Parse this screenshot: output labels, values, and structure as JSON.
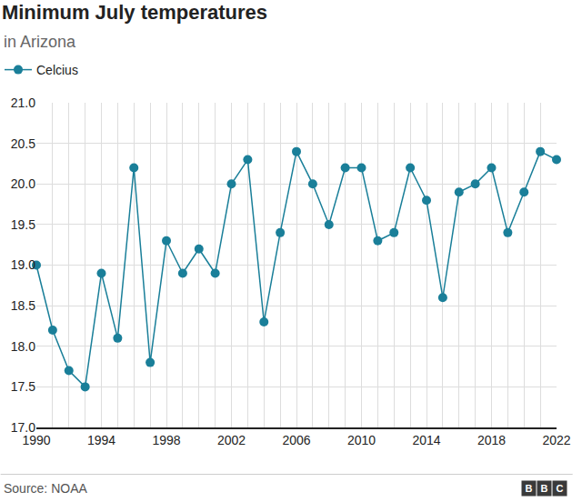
{
  "chart_data": {
    "type": "line",
    "title": "Minimum July temperatures",
    "subtitle": "in Arizona",
    "source": "Source: NOAA",
    "logo": "BBC",
    "x": [
      1990,
      1991,
      1992,
      1993,
      1994,
      1995,
      1996,
      1997,
      1998,
      1999,
      2000,
      2001,
      2002,
      2003,
      2004,
      2005,
      2006,
      2007,
      2008,
      2009,
      2010,
      2011,
      2012,
      2013,
      2014,
      2015,
      2016,
      2017,
      2018,
      2019,
      2020,
      2021,
      2022
    ],
    "series": [
      {
        "name": "Celcius",
        "color": "#1a7f99",
        "marker": "circle",
        "values": [
          19.0,
          18.2,
          17.7,
          17.5,
          18.9,
          18.1,
          20.2,
          17.8,
          19.3,
          18.9,
          19.2,
          18.9,
          20.0,
          20.3,
          18.3,
          19.4,
          20.4,
          20.0,
          19.5,
          20.2,
          20.2,
          19.3,
          19.4,
          20.2,
          19.8,
          18.6,
          19.9,
          20.0,
          20.2,
          19.4,
          19.9,
          20.4,
          20.3
        ]
      }
    ],
    "xlim": [
      1990,
      2022
    ],
    "xticks": [
      1990,
      1994,
      1998,
      2002,
      2006,
      2010,
      2014,
      2018,
      2022
    ],
    "ylim": [
      17,
      21
    ],
    "yticks": [
      {
        "value": 17,
        "label": "17.0"
      },
      {
        "value": 17.5,
        "label": "17.5"
      },
      {
        "value": 18,
        "label": "18.0"
      },
      {
        "value": 18.5,
        "label": "18.5"
      },
      {
        "value": 19,
        "label": "19.0"
      },
      {
        "value": 19.5,
        "label": "19.5"
      },
      {
        "value": 20,
        "label": "20.0"
      },
      {
        "value": 20.5,
        "label": "20.5"
      },
      {
        "value": 21,
        "label": "21.0"
      }
    ],
    "grid": true,
    "legend": "top-left"
  }
}
